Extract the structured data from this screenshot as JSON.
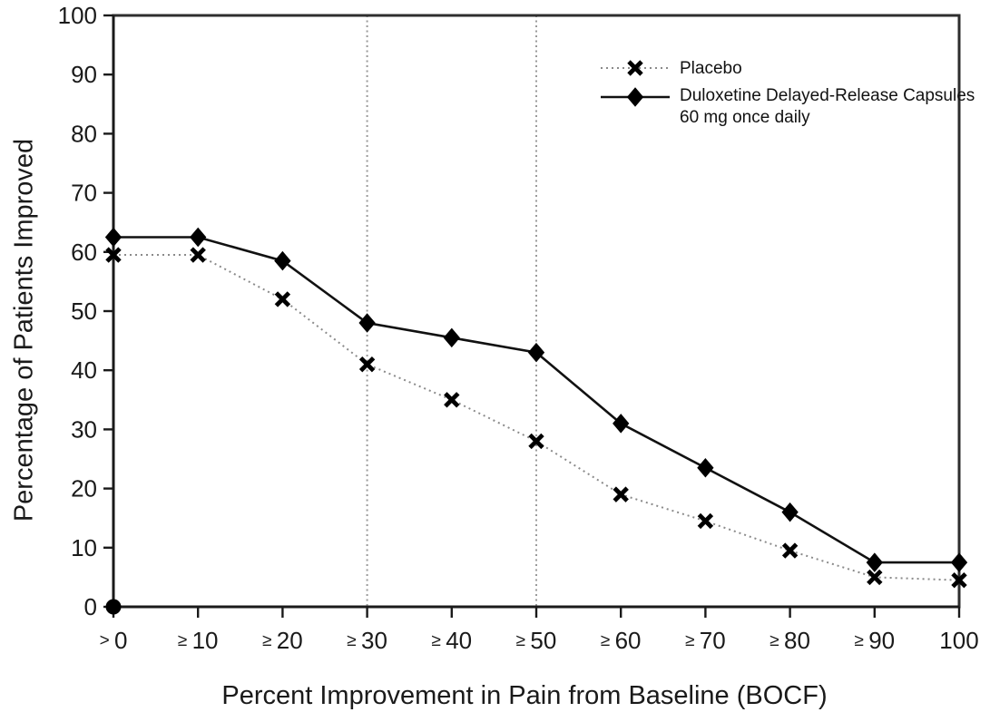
{
  "chart_data": {
    "type": "line",
    "title": "",
    "xlabel": "Percent Improvement in Pain from Baseline (BOCF)",
    "ylabel": "Percentage of Patients Improved",
    "x_tick_labels": [
      ">0",
      "≥10",
      "≥20",
      "≥30",
      "≥40",
      "≥50",
      "≥60",
      "≥70",
      "≥80",
      "≥90",
      "100"
    ],
    "y_ticks": [
      0,
      10,
      20,
      30,
      40,
      50,
      60,
      70,
      80,
      90,
      100
    ],
    "ylim": [
      0,
      100
    ],
    "grid": false,
    "legend_position": "top-right",
    "reference_lines_x": [
      "≥30",
      "≥50"
    ],
    "origin_marker": {
      "x_label": ">0",
      "y": 0
    },
    "series": [
      {
        "name": "Placebo",
        "legend_lines": [
          "Placebo"
        ],
        "marker": "x-cross",
        "line_style": "dotted",
        "color": "#000000",
        "line_color": "#8a8a8a",
        "values": [
          59.5,
          59.5,
          52,
          41,
          35,
          28,
          19,
          14.5,
          9.5,
          5,
          4.5
        ]
      },
      {
        "name": "Duloxetine Delayed-Release Capsules 60 mg once daily",
        "legend_lines": [
          "Duloxetine Delayed-Release Capsules",
          "60 mg once daily"
        ],
        "marker": "diamond",
        "line_style": "solid",
        "color": "#000000",
        "line_color": "#111111",
        "values": [
          62.5,
          62.5,
          58.5,
          48,
          45.5,
          43,
          31,
          23.5,
          16,
          7.5,
          7.5
        ]
      }
    ],
    "colors": {
      "background": "#ffffff",
      "axis": "#1a1a1a",
      "border": "#2e2e2e",
      "reference_line": "#9a9a9a",
      "text": "#1a1a1a"
    }
  }
}
